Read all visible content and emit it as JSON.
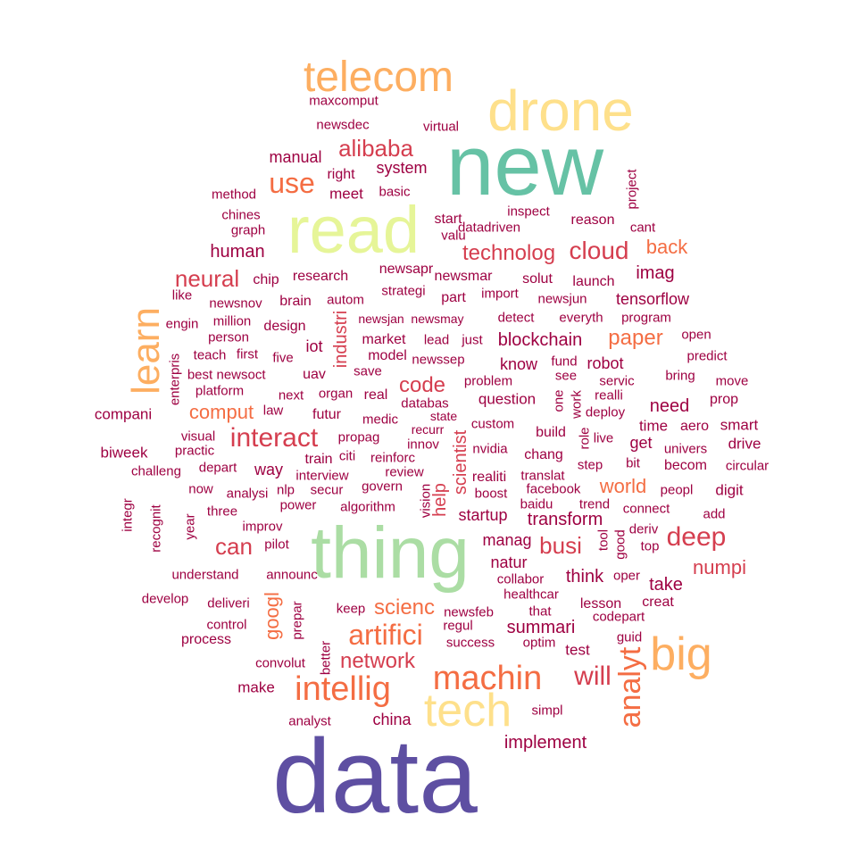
{
  "colors": {
    "background": "#ffffff",
    "purple": "#5e4fa2",
    "teal": "#66c2a5",
    "green": "#abdda4",
    "lime": "#e6f598",
    "yellow": "#fee08b",
    "orange": "#fdae61",
    "coral": "#f46d43",
    "red": "#d53e4f",
    "crimson": "#9e0142"
  },
  "words": [
    {
      "text": "data",
      "color": "purple"
    },
    {
      "text": "new",
      "color": "teal"
    },
    {
      "text": "thing",
      "color": "green"
    },
    {
      "text": "read",
      "color": "lime"
    },
    {
      "text": "drone",
      "color": "yellow"
    },
    {
      "text": "tech",
      "color": "yellow"
    },
    {
      "text": "telecom",
      "color": "orange"
    },
    {
      "text": "big",
      "color": "orange"
    },
    {
      "text": "learn",
      "color": "orange"
    },
    {
      "text": "analyt",
      "color": "coral"
    },
    {
      "text": "intellig",
      "color": "coral"
    },
    {
      "text": "machin",
      "color": "coral"
    },
    {
      "text": "artifici",
      "color": "coral"
    },
    {
      "text": "use",
      "color": "coral"
    },
    {
      "text": "will",
      "color": "red"
    },
    {
      "text": "deep",
      "color": "red"
    },
    {
      "text": "interact",
      "color": "red"
    },
    {
      "text": "cloud",
      "color": "red"
    },
    {
      "text": "alibaba",
      "color": "red"
    },
    {
      "text": "neural",
      "color": "red"
    },
    {
      "text": "network",
      "color": "red"
    },
    {
      "text": "technolog",
      "color": "red"
    },
    {
      "text": "busi",
      "color": "red"
    },
    {
      "text": "can",
      "color": "red"
    },
    {
      "text": "code",
      "color": "red"
    },
    {
      "text": "paper",
      "color": "coral"
    },
    {
      "text": "scienc",
      "color": "coral"
    },
    {
      "text": "world",
      "color": "coral"
    },
    {
      "text": "back",
      "color": "coral"
    },
    {
      "text": "googl",
      "color": "coral"
    },
    {
      "text": "comput",
      "color": "coral"
    },
    {
      "text": "numpi",
      "color": "red"
    },
    {
      "text": "industri",
      "color": "red"
    },
    {
      "text": "help",
      "color": "red"
    },
    {
      "text": "scientist",
      "color": "red"
    },
    {
      "text": "human",
      "color": "crimson"
    },
    {
      "text": "blockchain",
      "color": "crimson"
    },
    {
      "text": "transform",
      "color": "crimson"
    },
    {
      "text": "summari",
      "color": "crimson"
    },
    {
      "text": "implement",
      "color": "crimson"
    },
    {
      "text": "startup",
      "color": "crimson"
    },
    {
      "text": "think",
      "color": "crimson"
    },
    {
      "text": "need",
      "color": "crimson"
    },
    {
      "text": "take",
      "color": "crimson"
    },
    {
      "text": "manag",
      "color": "crimson"
    },
    {
      "text": "know",
      "color": "crimson"
    },
    {
      "text": "robot",
      "color": "crimson"
    },
    {
      "text": "imag",
      "color": "crimson"
    },
    {
      "text": "tensorflow",
      "color": "crimson"
    },
    {
      "text": "manual",
      "color": "crimson"
    },
    {
      "text": "system",
      "color": "crimson"
    },
    {
      "text": "meet",
      "color": "crimson"
    },
    {
      "text": "right",
      "color": "crimson"
    },
    {
      "text": "newsdec",
      "color": "crimson"
    },
    {
      "text": "maxcomput",
      "color": "crimson"
    },
    {
      "text": "virtual",
      "color": "crimson"
    },
    {
      "text": "method",
      "color": "crimson"
    },
    {
      "text": "basic",
      "color": "crimson"
    },
    {
      "text": "chines",
      "color": "crimson"
    },
    {
      "text": "graph",
      "color": "crimson"
    },
    {
      "text": "start",
      "color": "crimson"
    },
    {
      "text": "valu",
      "color": "crimson"
    },
    {
      "text": "datadriven",
      "color": "crimson"
    },
    {
      "text": "inspect",
      "color": "crimson"
    },
    {
      "text": "reason",
      "color": "crimson"
    },
    {
      "text": "cant",
      "color": "crimson"
    },
    {
      "text": "project",
      "color": "crimson"
    },
    {
      "text": "chip",
      "color": "crimson"
    },
    {
      "text": "research",
      "color": "crimson"
    },
    {
      "text": "newsapr",
      "color": "crimson"
    },
    {
      "text": "newsmar",
      "color": "crimson"
    },
    {
      "text": "solut",
      "color": "crimson"
    },
    {
      "text": "launch",
      "color": "crimson"
    },
    {
      "text": "like",
      "color": "crimson"
    },
    {
      "text": "newsnov",
      "color": "crimson"
    },
    {
      "text": "brain",
      "color": "crimson"
    },
    {
      "text": "autom",
      "color": "crimson"
    },
    {
      "text": "strategi",
      "color": "crimson"
    },
    {
      "text": "part",
      "color": "crimson"
    },
    {
      "text": "import",
      "color": "crimson"
    },
    {
      "text": "newsjun",
      "color": "crimson"
    },
    {
      "text": "engin",
      "color": "crimson"
    },
    {
      "text": "million",
      "color": "crimson"
    },
    {
      "text": "design",
      "color": "crimson"
    },
    {
      "text": "newsjan",
      "color": "crimson"
    },
    {
      "text": "newsmay",
      "color": "crimson"
    },
    {
      "text": "detect",
      "color": "crimson"
    },
    {
      "text": "everyth",
      "color": "crimson"
    },
    {
      "text": "program",
      "color": "crimson"
    },
    {
      "text": "person",
      "color": "crimson"
    },
    {
      "text": "iot",
      "color": "crimson"
    },
    {
      "text": "market",
      "color": "crimson"
    },
    {
      "text": "lead",
      "color": "crimson"
    },
    {
      "text": "just",
      "color": "crimson"
    },
    {
      "text": "open",
      "color": "crimson"
    },
    {
      "text": "teach",
      "color": "crimson"
    },
    {
      "text": "first",
      "color": "crimson"
    },
    {
      "text": "five",
      "color": "crimson"
    },
    {
      "text": "model",
      "color": "crimson"
    },
    {
      "text": "newssep",
      "color": "crimson"
    },
    {
      "text": "predict",
      "color": "crimson"
    },
    {
      "text": "best",
      "color": "crimson"
    },
    {
      "text": "newsoct",
      "color": "crimson"
    },
    {
      "text": "uav",
      "color": "crimson"
    },
    {
      "text": "save",
      "color": "crimson"
    },
    {
      "text": "problem",
      "color": "crimson"
    },
    {
      "text": "fund",
      "color": "crimson"
    },
    {
      "text": "bring",
      "color": "crimson"
    },
    {
      "text": "move",
      "color": "crimson"
    },
    {
      "text": "enterpris",
      "color": "crimson"
    },
    {
      "text": "platform",
      "color": "crimson"
    },
    {
      "text": "next",
      "color": "crimson"
    },
    {
      "text": "organ",
      "color": "crimson"
    },
    {
      "text": "real",
      "color": "crimson"
    },
    {
      "text": "see",
      "color": "crimson"
    },
    {
      "text": "servic",
      "color": "crimson"
    },
    {
      "text": "question",
      "color": "crimson"
    },
    {
      "text": "one",
      "color": "crimson"
    },
    {
      "text": "work",
      "color": "crimson"
    },
    {
      "text": "realli",
      "color": "crimson"
    },
    {
      "text": "prop",
      "color": "crimson"
    },
    {
      "text": "compani",
      "color": "crimson"
    },
    {
      "text": "law",
      "color": "crimson"
    },
    {
      "text": "futur",
      "color": "crimson"
    },
    {
      "text": "databas",
      "color": "crimson"
    },
    {
      "text": "state",
      "color": "crimson"
    },
    {
      "text": "deploy",
      "color": "crimson"
    },
    {
      "text": "medic",
      "color": "crimson"
    },
    {
      "text": "recurr",
      "color": "crimson"
    },
    {
      "text": "custom",
      "color": "crimson"
    },
    {
      "text": "time",
      "color": "crimson"
    },
    {
      "text": "aero",
      "color": "crimson"
    },
    {
      "text": "smart",
      "color": "crimson"
    },
    {
      "text": "visual",
      "color": "crimson"
    },
    {
      "text": "propag",
      "color": "crimson"
    },
    {
      "text": "innov",
      "color": "crimson"
    },
    {
      "text": "build",
      "color": "crimson"
    },
    {
      "text": "role",
      "color": "crimson"
    },
    {
      "text": "live",
      "color": "crimson"
    },
    {
      "text": "get",
      "color": "crimson"
    },
    {
      "text": "univers",
      "color": "crimson"
    },
    {
      "text": "drive",
      "color": "crimson"
    },
    {
      "text": "biweek",
      "color": "crimson"
    },
    {
      "text": "practic",
      "color": "crimson"
    },
    {
      "text": "nvidia",
      "color": "crimson"
    },
    {
      "text": "challeng",
      "color": "crimson"
    },
    {
      "text": "depart",
      "color": "crimson"
    },
    {
      "text": "way",
      "color": "crimson"
    },
    {
      "text": "train",
      "color": "crimson"
    },
    {
      "text": "citi",
      "color": "crimson"
    },
    {
      "text": "reinforc",
      "color": "crimson"
    },
    {
      "text": "interview",
      "color": "crimson"
    },
    {
      "text": "review",
      "color": "crimson"
    },
    {
      "text": "realiti",
      "color": "crimson"
    },
    {
      "text": "translat",
      "color": "crimson"
    },
    {
      "text": "step",
      "color": "crimson"
    },
    {
      "text": "bit",
      "color": "crimson"
    },
    {
      "text": "becom",
      "color": "crimson"
    },
    {
      "text": "circular",
      "color": "crimson"
    },
    {
      "text": "now",
      "color": "crimson"
    },
    {
      "text": "analysi",
      "color": "crimson"
    },
    {
      "text": "nlp",
      "color": "crimson"
    },
    {
      "text": "secur",
      "color": "crimson"
    },
    {
      "text": "govern",
      "color": "crimson"
    },
    {
      "text": "boost",
      "color": "crimson"
    },
    {
      "text": "chang",
      "color": "crimson"
    },
    {
      "text": "facebook",
      "color": "crimson"
    },
    {
      "text": "peopl",
      "color": "crimson"
    },
    {
      "text": "digit",
      "color": "crimson"
    },
    {
      "text": "integr",
      "color": "crimson"
    },
    {
      "text": "recognit",
      "color": "crimson"
    },
    {
      "text": "year",
      "color": "crimson"
    },
    {
      "text": "three",
      "color": "crimson"
    },
    {
      "text": "power",
      "color": "crimson"
    },
    {
      "text": "algorithm",
      "color": "crimson"
    },
    {
      "text": "vision",
      "color": "crimson"
    },
    {
      "text": "baidu",
      "color": "crimson"
    },
    {
      "text": "trend",
      "color": "crimson"
    },
    {
      "text": "connect",
      "color": "crimson"
    },
    {
      "text": "add",
      "color": "crimson"
    },
    {
      "text": "improv",
      "color": "crimson"
    },
    {
      "text": "pilot",
      "color": "crimson"
    },
    {
      "text": "tool",
      "color": "crimson"
    },
    {
      "text": "good",
      "color": "crimson"
    },
    {
      "text": "deriv",
      "color": "crimson"
    },
    {
      "text": "top",
      "color": "crimson"
    },
    {
      "text": "understand",
      "color": "crimson"
    },
    {
      "text": "announc",
      "color": "crimson"
    },
    {
      "text": "natur",
      "color": "crimson"
    },
    {
      "text": "collabor",
      "color": "crimson"
    },
    {
      "text": "oper",
      "color": "crimson"
    },
    {
      "text": "develop",
      "color": "crimson"
    },
    {
      "text": "deliveri",
      "color": "crimson"
    },
    {
      "text": "healthcar",
      "color": "crimson"
    },
    {
      "text": "creat",
      "color": "crimson"
    },
    {
      "text": "control",
      "color": "crimson"
    },
    {
      "text": "prepar",
      "color": "crimson"
    },
    {
      "text": "keep",
      "color": "crimson"
    },
    {
      "text": "newsfeb",
      "color": "crimson"
    },
    {
      "text": "that",
      "color": "crimson"
    },
    {
      "text": "lesson",
      "color": "crimson"
    },
    {
      "text": "codepart",
      "color": "crimson"
    },
    {
      "text": "process",
      "color": "crimson"
    },
    {
      "text": "regul",
      "color": "crimson"
    },
    {
      "text": "success",
      "color": "crimson"
    },
    {
      "text": "optim",
      "color": "crimson"
    },
    {
      "text": "test",
      "color": "crimson"
    },
    {
      "text": "guid",
      "color": "crimson"
    },
    {
      "text": "convolut",
      "color": "crimson"
    },
    {
      "text": "better",
      "color": "crimson"
    },
    {
      "text": "make",
      "color": "crimson"
    },
    {
      "text": "china",
      "color": "crimson"
    },
    {
      "text": "simpl",
      "color": "crimson"
    },
    {
      "text": "analyst",
      "color": "crimson"
    }
  ]
}
